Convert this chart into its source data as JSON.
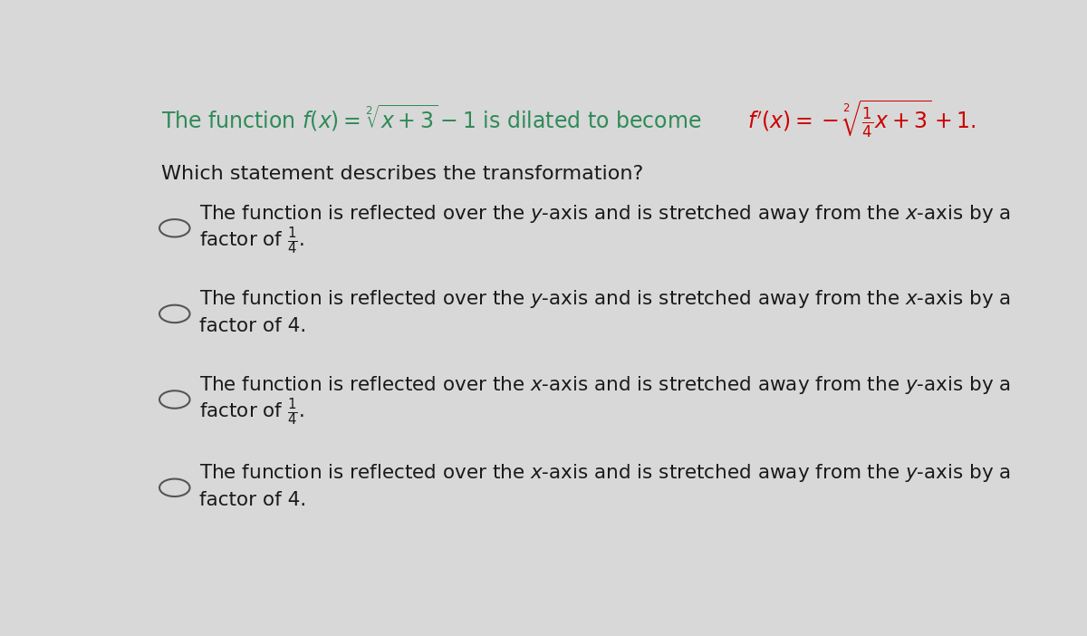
{
  "bg_color": "#d8d8d8",
  "header_color": "#2e8b57",
  "formula_color": "#cc0000",
  "text_color": "#1a1a1a",
  "question_color": "#1a1a1a",
  "font_size_header": 17,
  "font_size_question": 16,
  "font_size_options": 15.5,
  "options": [
    {
      "line1": "The function is reflected over the $y$-axis and is stretched away from the $x$-axis by a",
      "line2": "factor of $\\frac{1}{4}$."
    },
    {
      "line1": "The function is reflected over the $y$-axis and is stretched away from the $x$-axis by a",
      "line2": "factor of 4."
    },
    {
      "line1": "The function is reflected over the $x$-axis and is stretched away from the $y$-axis by a",
      "line2": "factor of $\\frac{1}{4}$."
    },
    {
      "line1": "The function is reflected over the $x$-axis and is stretched away from the $y$-axis by a",
      "line2": "factor of 4."
    }
  ]
}
